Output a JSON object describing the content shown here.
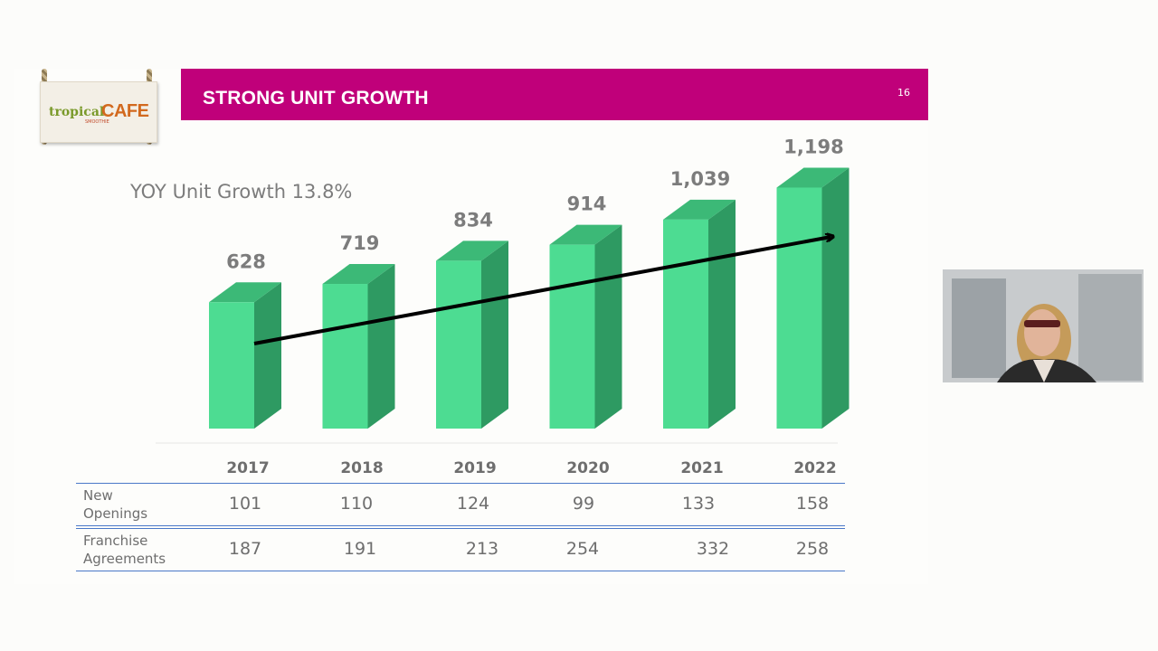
{
  "slide": {
    "title": "STRONG UNIT GROWTH",
    "page_number": "16",
    "subtitle": "YOY Unit Growth 13.8%"
  },
  "logo": {
    "word1": "tropical",
    "word2": "CAFE",
    "word3": "SMOOTHIE"
  },
  "colors": {
    "title_bar": "#c0007a",
    "bar_front": "#4ddc92",
    "bar_side": "#2e9a62",
    "bar_top": "#3cb977",
    "table_rule": "#4a78c8"
  },
  "chart_data": {
    "type": "bar",
    "title": "",
    "categories": [
      "2017",
      "2018",
      "2019",
      "2020",
      "2021",
      "2022"
    ],
    "series": [
      {
        "name": "",
        "values": [
          628,
          719,
          834,
          914,
          1039,
          1198
        ]
      }
    ],
    "data_labels": [
      "628",
      "719",
      "834",
      "914",
      "1,039",
      "1,198"
    ],
    "trend_arrow": {
      "from": "2017",
      "to": "2022"
    },
    "grid": false,
    "legend": "none"
  },
  "table": {
    "rows": [
      {
        "label_line1": "New",
        "label_line2": "Openings",
        "values": [
          "101",
          "110",
          "124",
          "99",
          "133",
          "158"
        ]
      },
      {
        "label_line1": "Franchise",
        "label_line2": "Agreements",
        "values": [
          "187",
          "191",
          "213",
          "254",
          "332",
          "258"
        ]
      }
    ]
  },
  "video_tile": {
    "icon": "presenter-video-feed"
  }
}
